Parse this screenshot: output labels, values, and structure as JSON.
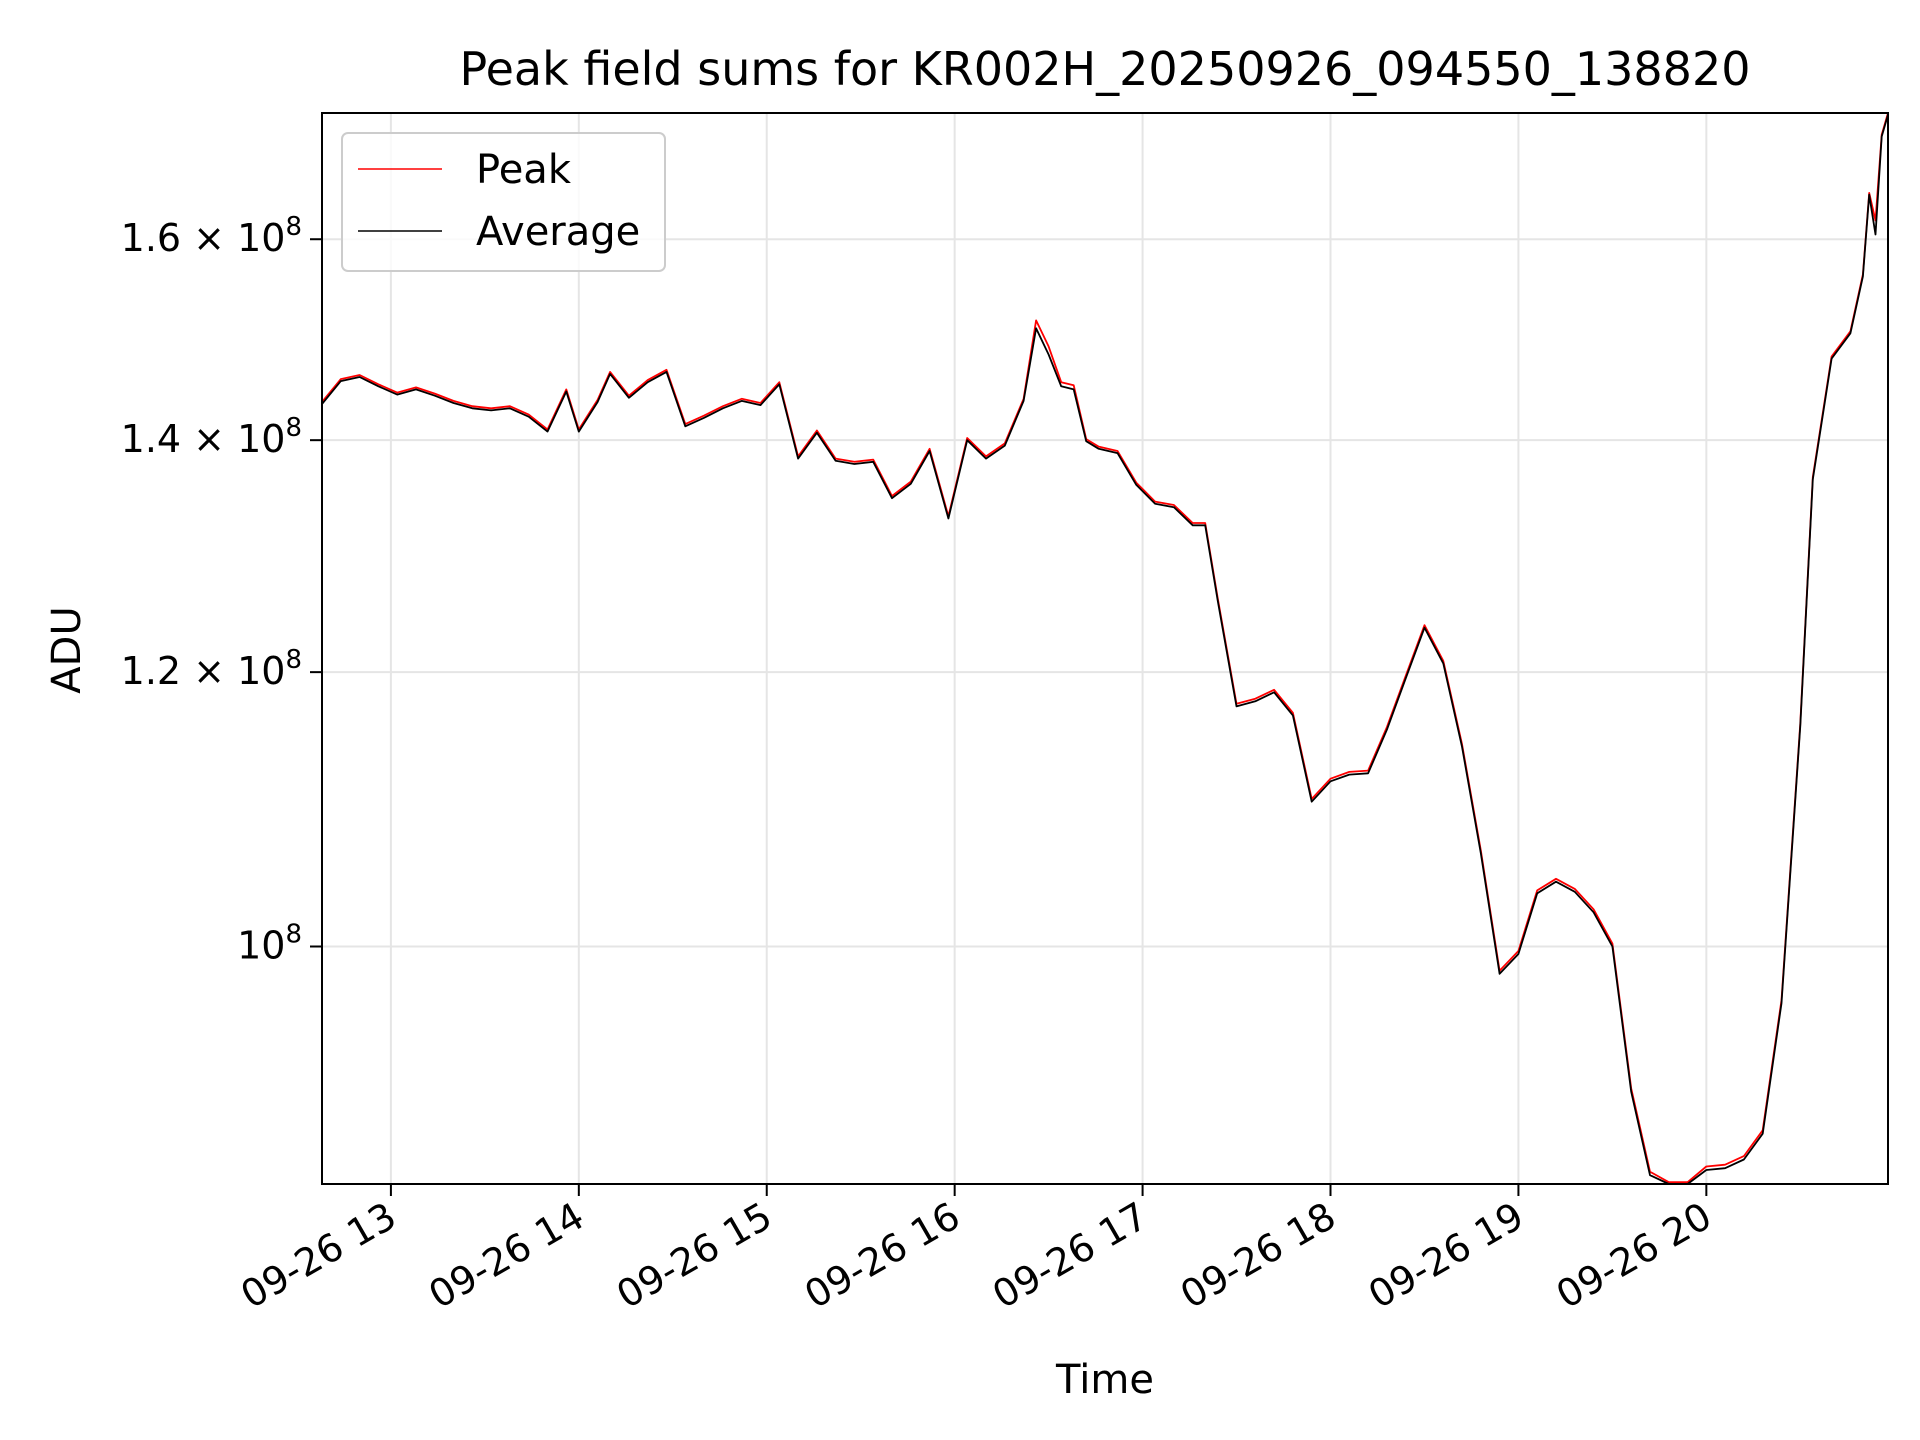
{
  "chart_data": {
    "type": "line",
    "title": "Peak field sums for KR002H_20250926_094550_138820",
    "xlabel": "Time",
    "ylabel": "ADU",
    "yscale": "log",
    "xlim": [
      "09-26 12:38",
      "09-26 20:58"
    ],
    "ylim": [
      85400000,
      174000000
    ],
    "x_ticks": [
      {
        "value": "09-26 13:00",
        "label": "09-26 13"
      },
      {
        "value": "09-26 14:00",
        "label": "09-26 14"
      },
      {
        "value": "09-26 15:00",
        "label": "09-26 15"
      },
      {
        "value": "09-26 16:00",
        "label": "09-26 16"
      },
      {
        "value": "09-26 17:00",
        "label": "09-26 17"
      },
      {
        "value": "09-26 18:00",
        "label": "09-26 18"
      },
      {
        "value": "09-26 19:00",
        "label": "09-26 19"
      },
      {
        "value": "09-26 20:00",
        "label": "09-26 20"
      }
    ],
    "y_ticks": [
      {
        "value": 100000000,
        "base": "10",
        "exp": "8"
      },
      {
        "value": 120000000,
        "base": "1.2 × 10",
        "exp": "8"
      },
      {
        "value": 140000000,
        "base": "1.4 × 10",
        "exp": "8"
      },
      {
        "value": 160000000,
        "base": "1.6 × 10",
        "exp": "8"
      }
    ],
    "grid": true,
    "legend_position": "top-left",
    "series": [
      {
        "name": "Peak",
        "color": "#ff0000"
      },
      {
        "name": "Average",
        "color": "#000000"
      }
    ],
    "x": [
      "09-26 12:38",
      "09-26 12:44",
      "09-26 12:50",
      "09-26 12:56",
      "09-26 13:02",
      "09-26 13:08",
      "09-26 13:14",
      "09-26 13:20",
      "09-26 13:26",
      "09-26 13:32",
      "09-26 13:38",
      "09-26 13:44",
      "09-26 13:50",
      "09-26 13:56",
      "09-26 14:00",
      "09-26 14:06",
      "09-26 14:10",
      "09-26 14:16",
      "09-26 14:22",
      "09-26 14:28",
      "09-26 14:34",
      "09-26 14:40",
      "09-26 14:46",
      "09-26 14:52",
      "09-26 14:58",
      "09-26 15:04",
      "09-26 15:10",
      "09-26 15:16",
      "09-26 15:22",
      "09-26 15:28",
      "09-26 15:34",
      "09-26 15:40",
      "09-26 15:46",
      "09-26 15:52",
      "09-26 15:58",
      "09-26 16:04",
      "09-26 16:10",
      "09-26 16:16",
      "09-26 16:22",
      "09-26 16:26",
      "09-26 16:30",
      "09-26 16:34",
      "09-26 16:38",
      "09-26 16:42",
      "09-26 16:46",
      "09-26 16:52",
      "09-26 16:58",
      "09-26 17:04",
      "09-26 17:10",
      "09-26 17:16",
      "09-26 17:20",
      "09-26 17:24",
      "09-26 17:30",
      "09-26 17:36",
      "09-26 17:42",
      "09-26 17:48",
      "09-26 17:54",
      "09-26 18:00",
      "09-26 18:06",
      "09-26 18:12",
      "09-26 18:18",
      "09-26 18:24",
      "09-26 18:30",
      "09-26 18:36",
      "09-26 18:42",
      "09-26 18:48",
      "09-26 18:54",
      "09-26 19:00",
      "09-26 19:06",
      "09-26 19:12",
      "09-26 19:18",
      "09-26 19:24",
      "09-26 19:30",
      "09-26 19:36",
      "09-26 19:42",
      "09-26 19:48",
      "09-26 19:54",
      "09-26 20:00",
      "09-26 20:06",
      "09-26 20:12",
      "09-26 20:18",
      "09-26 20:24",
      "09-26 20:30",
      "09-26 20:34",
      "09-26 20:40",
      "09-26 20:46",
      "09-26 20:50",
      "09-26 20:52",
      "09-26 20:54",
      "09-26 20:56",
      "09-26 20:58"
    ],
    "peak_values": [
      143600000,
      145800000,
      146200000,
      145300000,
      144500000,
      145000000,
      144400000,
      143700000,
      143200000,
      143000000,
      143200000,
      142400000,
      141000000,
      144800000,
      141000000,
      143800000,
      146500000,
      144200000,
      145700000,
      146700000,
      141500000,
      142300000,
      143200000,
      143900000,
      143500000,
      145500000,
      138500000,
      140900000,
      138300000,
      138000000,
      138200000,
      134900000,
      136200000,
      139200000,
      133100000,
      140200000,
      138500000,
      139700000,
      143900000,
      151600000,
      149000000,
      145500000,
      145200000,
      140100000,
      139400000,
      139000000,
      136100000,
      134400000,
      134100000,
      132500000,
      132500000,
      126000000,
      117500000,
      117900000,
      118600000,
      116800000,
      110300000,
      111800000,
      112300000,
      112400000,
      115700000,
      119700000,
      123800000,
      120900000,
      114400000,
      106600000,
      98400000,
      99700000,
      103800000,
      104600000,
      103900000,
      102500000,
      100200000,
      91000000,
      86100000,
      85500000,
      85500000,
      86400000,
      86500000,
      87000000,
      88500000,
      96500000,
      116000000,
      136600000,
      148000000,
      150500000,
      156300000,
      165000000,
      162000000,
      171500000,
      174000000
    ],
    "average_values": [
      143400000,
      145600000,
      146000000,
      145100000,
      144300000,
      144800000,
      144200000,
      143500000,
      143000000,
      142800000,
      143000000,
      142200000,
      140800000,
      144600000,
      140800000,
      143600000,
      146300000,
      144000000,
      145500000,
      146500000,
      141300000,
      142100000,
      143000000,
      143700000,
      143300000,
      145300000,
      138300000,
      140700000,
      138100000,
      137800000,
      138000000,
      134700000,
      136000000,
      139000000,
      132900000,
      140000000,
      138300000,
      139500000,
      143700000,
      150800000,
      148200000,
      145100000,
      144800000,
      139900000,
      139200000,
      138800000,
      135900000,
      134200000,
      133900000,
      132300000,
      132300000,
      125800000,
      117300000,
      117700000,
      118400000,
      116600000,
      110100000,
      111600000,
      112100000,
      112200000,
      115500000,
      119500000,
      123600000,
      120700000,
      114200000,
      106400000,
      98200000,
      99500000,
      103600000,
      104400000,
      103700000,
      102300000,
      100000000,
      90800000,
      85900000,
      85400000,
      85400000,
      86200000,
      86300000,
      86800000,
      88300000,
      96300000,
      115800000,
      136400000,
      147800000,
      150300000,
      156100000,
      164800000,
      160500000,
      171300000,
      173800000
    ]
  }
}
